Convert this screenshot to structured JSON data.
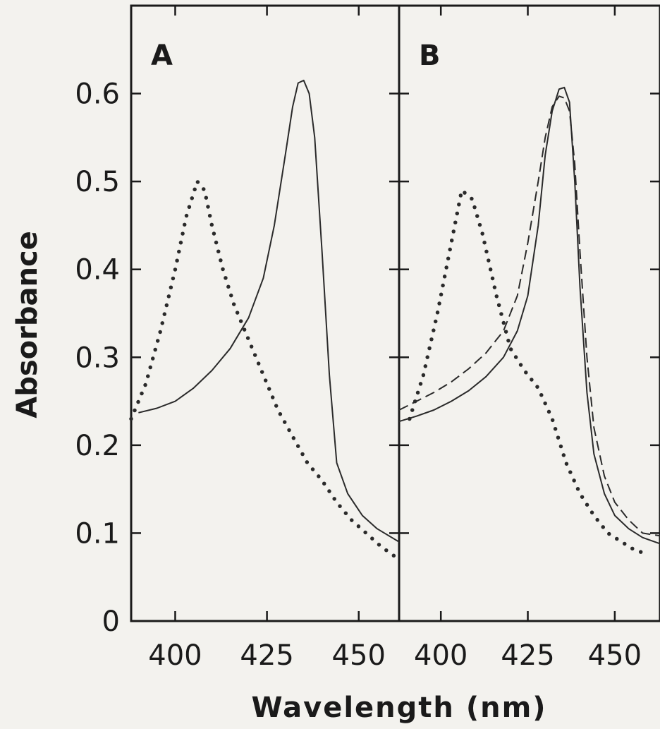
{
  "chart_data": {
    "type": "line",
    "xlabel": "Wavelength (nm)",
    "ylabel": "Absorbance",
    "ylim": [
      0,
      0.7
    ],
    "y_ticks": [
      0,
      0.1,
      0.2,
      0.3,
      0.4,
      0.5,
      0.6
    ],
    "y_tick_labels": [
      "0",
      "0.1",
      "0.2",
      "0.3",
      "0.4",
      "0.5",
      "0.6"
    ],
    "grid": false,
    "panels": [
      {
        "label": "A",
        "xlim": [
          388,
          461
        ],
        "x_ticks": [
          400,
          425,
          450
        ],
        "x_tick_labels": [
          "400",
          "425",
          "450"
        ],
        "series": [
          {
            "style": "dotted",
            "x": [
              388,
              392,
              396,
              400,
              403,
              406,
              408,
              410,
              413,
              416,
              420,
              424,
              428,
              432,
              436,
              440,
              444,
              448,
              452,
              456,
              461
            ],
            "y": [
              0.23,
              0.27,
              0.33,
              0.4,
              0.46,
              0.5,
              0.49,
              0.45,
              0.4,
              0.36,
              0.32,
              0.28,
              0.24,
              0.21,
              0.18,
              0.16,
              0.135,
              0.115,
              0.1,
              0.085,
              0.07
            ]
          },
          {
            "style": "solid",
            "x": [
              390,
              395,
              400,
              405,
              410,
              415,
              420,
              424,
              427,
              430,
              432,
              433.5,
              435,
              436.5,
              438,
              440,
              442,
              444,
              447,
              451,
              455,
              461
            ],
            "y": [
              0.237,
              0.242,
              0.25,
              0.265,
              0.285,
              0.31,
              0.345,
              0.39,
              0.45,
              0.53,
              0.585,
              0.612,
              0.615,
              0.6,
              0.55,
              0.42,
              0.28,
              0.18,
              0.145,
              0.12,
              0.105,
              0.09
            ]
          }
        ]
      },
      {
        "label": "B",
        "xlim": [
          388,
          463
        ],
        "x_ticks": [
          400,
          425,
          450
        ],
        "x_tick_labels": [
          "400",
          "425",
          "450"
        ],
        "series": [
          {
            "style": "dotted",
            "x": [
              391,
              395,
              399,
              403,
              406,
              409,
              412,
              416,
              420,
              424,
              428,
              432,
              436,
              440,
              444,
              448,
              452,
              456,
              458
            ],
            "y": [
              0.23,
              0.28,
              0.35,
              0.43,
              0.49,
              0.48,
              0.44,
              0.37,
              0.31,
              0.285,
              0.265,
              0.23,
              0.18,
              0.145,
              0.12,
              0.1,
              0.09,
              0.08,
              0.078
            ]
          },
          {
            "style": "solid",
            "x": [
              388,
              393,
              398,
              403,
              408,
              413,
              418,
              422,
              425,
              428,
              430,
              432,
              434,
              435.5,
              437,
              438.5,
              440,
              442,
              444,
              447,
              450,
              454,
              458,
              463
            ],
            "y": [
              0.227,
              0.233,
              0.24,
              0.25,
              0.262,
              0.278,
              0.3,
              0.33,
              0.37,
              0.45,
              0.53,
              0.58,
              0.605,
              0.607,
              0.59,
              0.5,
              0.38,
              0.26,
              0.19,
              0.145,
              0.12,
              0.105,
              0.095,
              0.088
            ]
          },
          {
            "style": "dashed",
            "x": [
              388,
              393,
              398,
              403,
              408,
              413,
              418,
              422,
              425,
              428,
              430,
              432,
              434,
              435.5,
              437,
              438.5,
              440,
              442,
              444,
              447,
              450,
              454,
              458,
              463
            ],
            "y": [
              0.24,
              0.25,
              0.26,
              0.272,
              0.287,
              0.305,
              0.33,
              0.37,
              0.43,
              0.5,
              0.55,
              0.585,
              0.597,
              0.595,
              0.58,
              0.52,
              0.42,
              0.3,
              0.22,
              0.165,
              0.135,
              0.115,
              0.1,
              0.097
            ]
          }
        ]
      }
    ]
  }
}
